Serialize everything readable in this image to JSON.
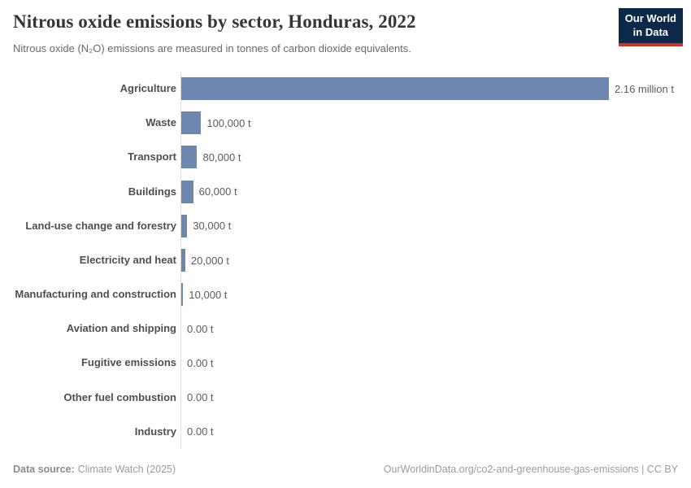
{
  "header": {
    "title": "Nitrous oxide emissions by sector, Honduras, 2022",
    "subtitle": "Nitrous oxide (N₂O) emissions are measured in tonnes of carbon dioxide equivalents.",
    "logo": {
      "line1": "Our World",
      "line2": "in Data"
    }
  },
  "chart_data": {
    "type": "bar",
    "orientation": "horizontal",
    "title": "Nitrous oxide emissions by sector, Honduras, 2022",
    "unit": "tonnes of carbon dioxide equivalents",
    "categories": [
      "Agriculture",
      "Waste",
      "Transport",
      "Buildings",
      "Land-use change and forestry",
      "Electricity and heat",
      "Manufacturing and construction",
      "Aviation and shipping",
      "Fugitive emissions",
      "Other fuel combustion",
      "Industry"
    ],
    "values": [
      2160000,
      100000,
      80000,
      60000,
      30000,
      20000,
      10000,
      0,
      0,
      0,
      0
    ],
    "value_labels": [
      "2.16 million t",
      "100,000 t",
      "80,000 t",
      "60,000 t",
      "30,000 t",
      "20,000 t",
      "10,000 t",
      "0.00 t",
      "0.00 t",
      "0.00 t",
      "0.00 t"
    ],
    "xlim": [
      0,
      2160000
    ],
    "bar_color": "#6e87b1",
    "axis_color": "#dcdcdc",
    "grid": false,
    "legend": "none"
  },
  "footer": {
    "datasource_label": "Data source:",
    "datasource_value": "Climate Watch (2025)",
    "attribution": "OurWorldinData.org/co2-and-greenhouse-gas-emissions | CC BY"
  }
}
